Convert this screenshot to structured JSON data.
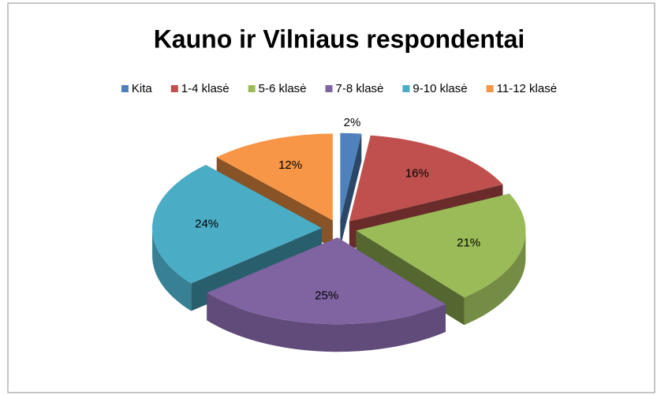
{
  "chart_data": {
    "type": "pie",
    "title": "Kauno ir Vilniaus respondentai",
    "categories": [
      "Kita",
      "1-4 klasė",
      "5-6 klasė",
      "7-8 klasė",
      "9-10 klasė",
      "11-12 klasė"
    ],
    "values": [
      2,
      16,
      21,
      25,
      24,
      12
    ],
    "value_labels": [
      "2%",
      "16%",
      "21%",
      "25%",
      "24%",
      "12%"
    ],
    "colors": [
      "#4f81bd",
      "#c0504d",
      "#9bbb59",
      "#8064a2",
      "#4bacc6",
      "#f79646"
    ],
    "legend": "top"
  }
}
